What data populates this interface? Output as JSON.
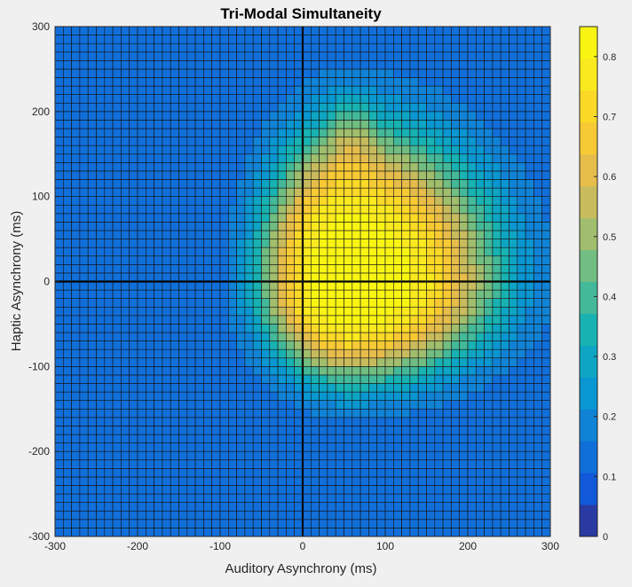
{
  "chart_data": {
    "type": "heatmap",
    "title": "Tri-Modal Simultaneity",
    "xlabel": "Auditory Asynchrony (ms)",
    "ylabel": "Haptic Asynchrony (ms)",
    "xlim": [
      -300,
      300
    ],
    "ylim": [
      -300,
      300
    ],
    "x_ticks": [
      "-300",
      "-200",
      "-100",
      "0",
      "100",
      "200",
      "300"
    ],
    "y_ticks": [
      "-300",
      "-200",
      "-100",
      "0",
      "100",
      "200",
      "300"
    ],
    "colorbar": {
      "range": [
        0,
        0.85
      ],
      "ticks": [
        "0",
        "0.1",
        "0.2",
        "0.3",
        "0.4",
        "0.5",
        "0.6",
        "0.7",
        "0.8"
      ],
      "colormap": "parula",
      "levels": 16
    },
    "grid": {
      "cell_ms": 10,
      "cells_per_axis": 60,
      "visible": true
    },
    "reference_lines": [
      {
        "axis": "x",
        "value": 0
      },
      {
        "axis": "y",
        "value": 0
      }
    ],
    "surface_model": {
      "description_units": "ms",
      "baseline": 0.12,
      "peak": 0.85,
      "center": [
        55,
        0
      ],
      "spread_x": {
        "negative_side": 110,
        "positive_side": 185
      },
      "spread_y": {
        "negative_side": 120,
        "positive_side": 185
      },
      "secondary_lobe": {
        "center": [
          60,
          175
        ],
        "spread": [
          25,
          45
        ],
        "amplitude": 0.12
      }
    }
  }
}
